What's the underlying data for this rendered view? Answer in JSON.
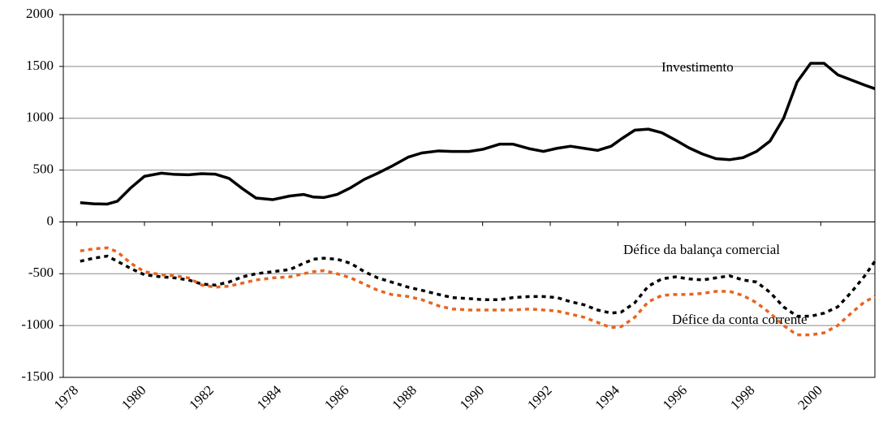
{
  "chart_data": {
    "type": "line",
    "x": [
      1978.1,
      1978.5,
      1978.9,
      1979.2,
      1979.6,
      1980.0,
      1980.5,
      1980.9,
      1981.3,
      1981.7,
      1982.1,
      1982.5,
      1982.9,
      1983.3,
      1983.8,
      1984.3,
      1984.7,
      1985.0,
      1985.3,
      1985.7,
      1986.1,
      1986.5,
      1986.9,
      1987.3,
      1987.8,
      1988.2,
      1988.7,
      1989.1,
      1989.6,
      1990.0,
      1990.5,
      1990.9,
      1991.4,
      1991.8,
      1992.2,
      1992.6,
      1993.0,
      1993.4,
      1993.8,
      1994.1,
      1994.5,
      1994.9,
      1995.3,
      1995.7,
      1996.1,
      1996.5,
      1996.9,
      1997.3,
      1997.7,
      1998.1,
      1998.5,
      1998.9,
      1999.3,
      1999.7,
      2000.1,
      2000.5,
      2000.9,
      2001.3,
      2001.6
    ],
    "series": [
      {
        "name": "Investimento",
        "color": "#000000",
        "dash": false,
        "values": [
          185,
          175,
          172,
          200,
          330,
          440,
          470,
          458,
          455,
          465,
          460,
          420,
          320,
          230,
          215,
          250,
          265,
          240,
          235,
          265,
          330,
          410,
          470,
          535,
          625,
          665,
          685,
          680,
          680,
          700,
          750,
          750,
          705,
          680,
          710,
          730,
          710,
          690,
          730,
          800,
          885,
          895,
          860,
          790,
          715,
          655,
          610,
          600,
          620,
          680,
          780,
          1000,
          1350,
          1530,
          1530,
          1420,
          1370,
          1320,
          1285
        ]
      },
      {
        "name": "Défice da balança comercial",
        "color": "#000000",
        "dash": true,
        "values": [
          -380,
          -350,
          -330,
          -380,
          -450,
          -510,
          -530,
          -540,
          -560,
          -600,
          -610,
          -580,
          -530,
          -500,
          -480,
          -460,
          -400,
          -360,
          -350,
          -360,
          -400,
          -480,
          -540,
          -580,
          -630,
          -660,
          -700,
          -730,
          -740,
          -750,
          -750,
          -730,
          -720,
          -720,
          -730,
          -770,
          -800,
          -850,
          -880,
          -870,
          -780,
          -620,
          -550,
          -530,
          -550,
          -560,
          -540,
          -520,
          -560,
          -580,
          -680,
          -820,
          -910,
          -910,
          -880,
          -820,
          -680,
          -520,
          -380
        ]
      },
      {
        "name": "Défice da conta corrente",
        "color": "#e8641e",
        "dash": true,
        "values": [
          -280,
          -260,
          -250,
          -290,
          -400,
          -480,
          -510,
          -520,
          -540,
          -610,
          -630,
          -620,
          -590,
          -560,
          -540,
          -530,
          -500,
          -480,
          -470,
          -500,
          -540,
          -600,
          -660,
          -700,
          -720,
          -750,
          -810,
          -840,
          -850,
          -850,
          -850,
          -850,
          -840,
          -850,
          -860,
          -890,
          -920,
          -970,
          -1020,
          -1010,
          -920,
          -770,
          -710,
          -700,
          -700,
          -690,
          -670,
          -670,
          -710,
          -780,
          -880,
          -1000,
          -1090,
          -1090,
          -1070,
          -1000,
          -880,
          -770,
          -720
        ]
      }
    ],
    "xlim": [
      1977.6,
      2001.6
    ],
    "xticks": [
      1978,
      1980,
      1982,
      1984,
      1986,
      1988,
      1990,
      1992,
      1994,
      1996,
      1998,
      2000
    ],
    "ylim": [
      -1500,
      2000
    ],
    "yticks": [
      -1500,
      -1000,
      -500,
      0,
      500,
      1000,
      1500,
      2000
    ],
    "grid": true
  }
}
